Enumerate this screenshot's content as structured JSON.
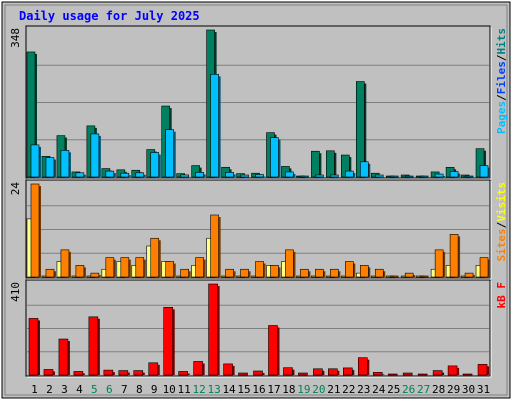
{
  "chart_data": {
    "type": "bar",
    "title": "Daily usage for July 2025",
    "days": [
      "1",
      "2",
      "3",
      "4",
      "5",
      "6",
      "7",
      "8",
      "9",
      "10",
      "11",
      "12",
      "13",
      "14",
      "15",
      "16",
      "17",
      "18",
      "19",
      "20",
      "21",
      "22",
      "23",
      "24",
      "25",
      "26",
      "27",
      "28",
      "29",
      "30",
      "31"
    ],
    "weekend_days": [
      "5",
      "6",
      "12",
      "13",
      "19",
      "20",
      "26",
      "27"
    ],
    "panels": [
      {
        "id": "hits",
        "ymax": 348,
        "ymax_label": "348",
        "legend": [
          {
            "label": "Pages",
            "color": "#00c0ff"
          },
          {
            "label": "/",
            "color": "#000000"
          },
          {
            "label": "Files",
            "color": "#0040ff"
          },
          {
            "label": "/",
            "color": "#000000"
          },
          {
            "label": "Hits",
            "color": "#008080"
          }
        ],
        "series": [
          {
            "name": "Hits",
            "color": "#008060",
            "values": [
              296,
              49,
              98,
              12,
              121,
              20,
              17,
              16,
              65,
              168,
              8,
              27,
              348,
              23,
              8,
              9,
              105,
              25,
              0,
              61,
              62,
              52,
              226,
              9,
              0,
              2,
              0,
              12,
              23,
              4,
              67
            ]
          },
          {
            "name": "Files",
            "color": "#00c0ff",
            "values": [
              76,
              46,
              63,
              10,
              102,
              14,
              9,
              10,
              58,
              112,
              5,
              11,
              243,
              11,
              4,
              6,
              93,
              12,
              0,
              3,
              3,
              14,
              36,
              3,
              0,
              0,
              0,
              7,
              13,
              0,
              27
            ]
          }
        ]
      },
      {
        "id": "visits",
        "ymax": 24,
        "ymax_label": "24",
        "legend": [
          {
            "label": "Sites",
            "color": "#ff8000"
          },
          {
            "label": "/",
            "color": "#000000"
          },
          {
            "label": "Visits",
            "color": "#ffff00"
          }
        ],
        "series": [
          {
            "name": "Visits",
            "color": "#ffff80",
            "values": [
              15,
              0,
              4,
              0,
              0,
              2,
              4,
              3,
              8,
              4,
              0,
              3,
              10,
              0,
              0,
              0,
              3,
              4,
              0,
              0,
              0,
              0,
              1,
              0,
              0,
              0,
              0,
              2,
              3,
              0,
              3
            ]
          },
          {
            "name": "Sites",
            "color": "#ff8000",
            "values": [
              24,
              2,
              7,
              3,
              1,
              5,
              5,
              5,
              10,
              4,
              2,
              5,
              16,
              2,
              2,
              4,
              3,
              7,
              2,
              2,
              2,
              4,
              3,
              2,
              0,
              1,
              0,
              7,
              11,
              1,
              5
            ]
          }
        ]
      },
      {
        "id": "kbytes",
        "ymax": 410,
        "ymax_label": "410",
        "legend": [
          {
            "label": "kB F",
            "color": "#ff0000"
          }
        ],
        "series": [
          {
            "name": "kB F",
            "color": "#ff0000",
            "values": [
              255,
              25,
              162,
              16,
              262,
              22,
              20,
              20,
              55,
              305,
              16,
              61,
              410,
              50,
              6,
              18,
              223,
              33,
              3,
              28,
              28,
              32,
              78,
              12,
              0,
              2,
              0,
              20,
              41,
              0,
              48
            ]
          }
        ]
      }
    ]
  }
}
